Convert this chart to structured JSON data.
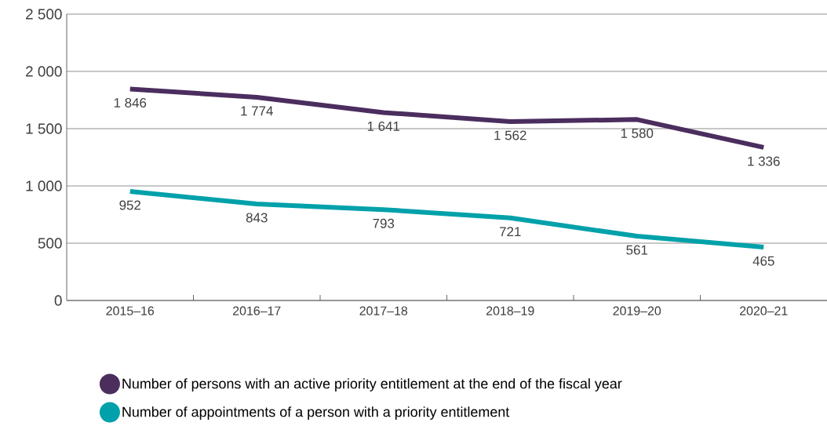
{
  "chart_data": {
    "type": "line",
    "categories": [
      "2015–16",
      "2016–17",
      "2017–18",
      "2018–19",
      "2019–20",
      "2020–21"
    ],
    "series": [
      {
        "name": "Number of persons with an active priority entitlement at the end of the fiscal year",
        "color": "#4b2d5e",
        "values": [
          1846,
          1774,
          1641,
          1562,
          1580,
          1336
        ],
        "value_labels": [
          "1 846",
          "1 774",
          "1 641",
          "1 562",
          "1 580",
          "1 336"
        ]
      },
      {
        "name": "Number of appointments of a person with a priority entitlement",
        "color": "#00a1aa",
        "values": [
          952,
          843,
          793,
          721,
          561,
          465
        ],
        "value_labels": [
          "952",
          "843",
          "793",
          "721",
          "561",
          "465"
        ]
      }
    ],
    "ylim": [
      0,
      2500
    ],
    "yticks": [
      0,
      500,
      {
        "value": 1000,
        "label": "1 000"
      },
      {
        "value": 1500,
        "label": "1 500"
      },
      {
        "value": 2000,
        "label": "2 000"
      },
      {
        "value": 2500,
        "label": "2 500"
      }
    ],
    "grid": "y",
    "legend": "bottom",
    "marker": "none",
    "line_style": "solid"
  }
}
